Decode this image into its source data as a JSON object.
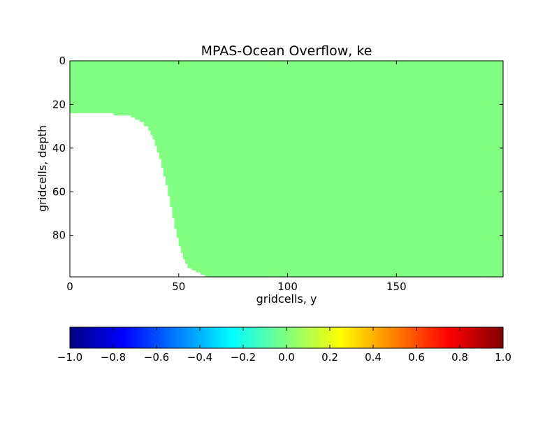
{
  "chart_data": {
    "type": "heatmap",
    "title": "MPAS-Ocean Overflow, ke",
    "xlabel": "gridcells, y",
    "ylabel": "gridcells, depth",
    "x_range": [
      0,
      199
    ],
    "y_range": [
      0,
      99
    ],
    "y_inverted": true,
    "x_ticks": [
      0,
      50,
      100,
      150
    ],
    "x_tick_labels": [
      "0",
      "50",
      "100",
      "150"
    ],
    "y_ticks": [
      0,
      20,
      40,
      60,
      80
    ],
    "y_tick_labels": [
      "0",
      "20",
      "40",
      "60",
      "80"
    ],
    "field_value": 0.0,
    "fill_color": "#80ff80",
    "masked_color": "#ffffff",
    "bathymetry": {
      "description": "bottom depth (gridcells) per y column; white region below is land",
      "y": [
        0,
        15,
        20,
        26,
        28,
        30,
        32,
        34,
        36,
        37,
        38,
        39,
        40,
        41,
        42,
        43,
        44,
        45,
        46,
        47,
        48,
        49,
        50,
        51,
        52,
        53,
        54,
        56,
        58,
        60,
        62,
        199
      ],
      "bottom": [
        24,
        24,
        25,
        25,
        26,
        27,
        28,
        30,
        32,
        34,
        36,
        39,
        42,
        45,
        49,
        53,
        57,
        62,
        67,
        72,
        77,
        81,
        85,
        88,
        91,
        93,
        95,
        96,
        97,
        98,
        99,
        99
      ]
    },
    "colorbar": {
      "orientation": "horizontal",
      "colormap": "jet",
      "range": [
        -1.0,
        1.0
      ],
      "ticks": [
        -1.0,
        -0.8,
        -0.6,
        -0.4,
        -0.2,
        0.0,
        0.2,
        0.4,
        0.6,
        0.8,
        1.0
      ],
      "tick_labels": [
        "−1.0",
        "−0.8",
        "−0.6",
        "−0.4",
        "−0.2",
        "0.0",
        "0.2",
        "0.4",
        "0.6",
        "0.8",
        "1.0"
      ],
      "stops": [
        "#000080",
        "#0000ff",
        "#0080ff",
        "#00ffff",
        "#80ff80",
        "#ffff00",
        "#ff8000",
        "#ff0000",
        "#800000"
      ]
    }
  }
}
